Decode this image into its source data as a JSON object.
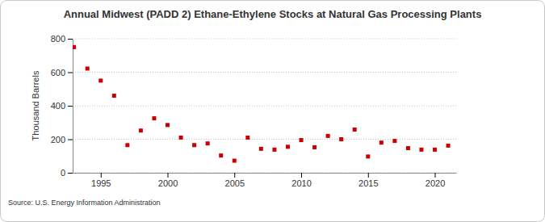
{
  "chart_data": {
    "type": "scatter",
    "title": "Annual Midwest (PADD 2) Ethane-Ethylene Stocks at Natural Gas Processing Plants",
    "y_label": "Thousand Barrels",
    "source": "Source: U.S. Energy Information Administration",
    "x": [
      1993,
      1994,
      1995,
      1996,
      1997,
      1998,
      1999,
      2000,
      2001,
      2002,
      2003,
      2004,
      2005,
      2006,
      2007,
      2008,
      2009,
      2010,
      2011,
      2012,
      2013,
      2014,
      2015,
      2016,
      2017,
      2018,
      2019,
      2020,
      2021
    ],
    "values": [
      750,
      622,
      550,
      460,
      165,
      252,
      325,
      285,
      210,
      165,
      175,
      103,
      72,
      210,
      143,
      138,
      155,
      195,
      152,
      220,
      200,
      258,
      97,
      180,
      190,
      147,
      138,
      138,
      162
    ],
    "color": "#cc0000",
    "marker": "square",
    "xlim": [
      1992.9,
      2021.6
    ],
    "xticks": [
      1995,
      2000,
      2005,
      2010,
      2015,
      2020
    ],
    "ylim": [
      0,
      800
    ],
    "yticks": [
      0,
      200,
      400,
      600,
      800
    ],
    "grid": true
  }
}
